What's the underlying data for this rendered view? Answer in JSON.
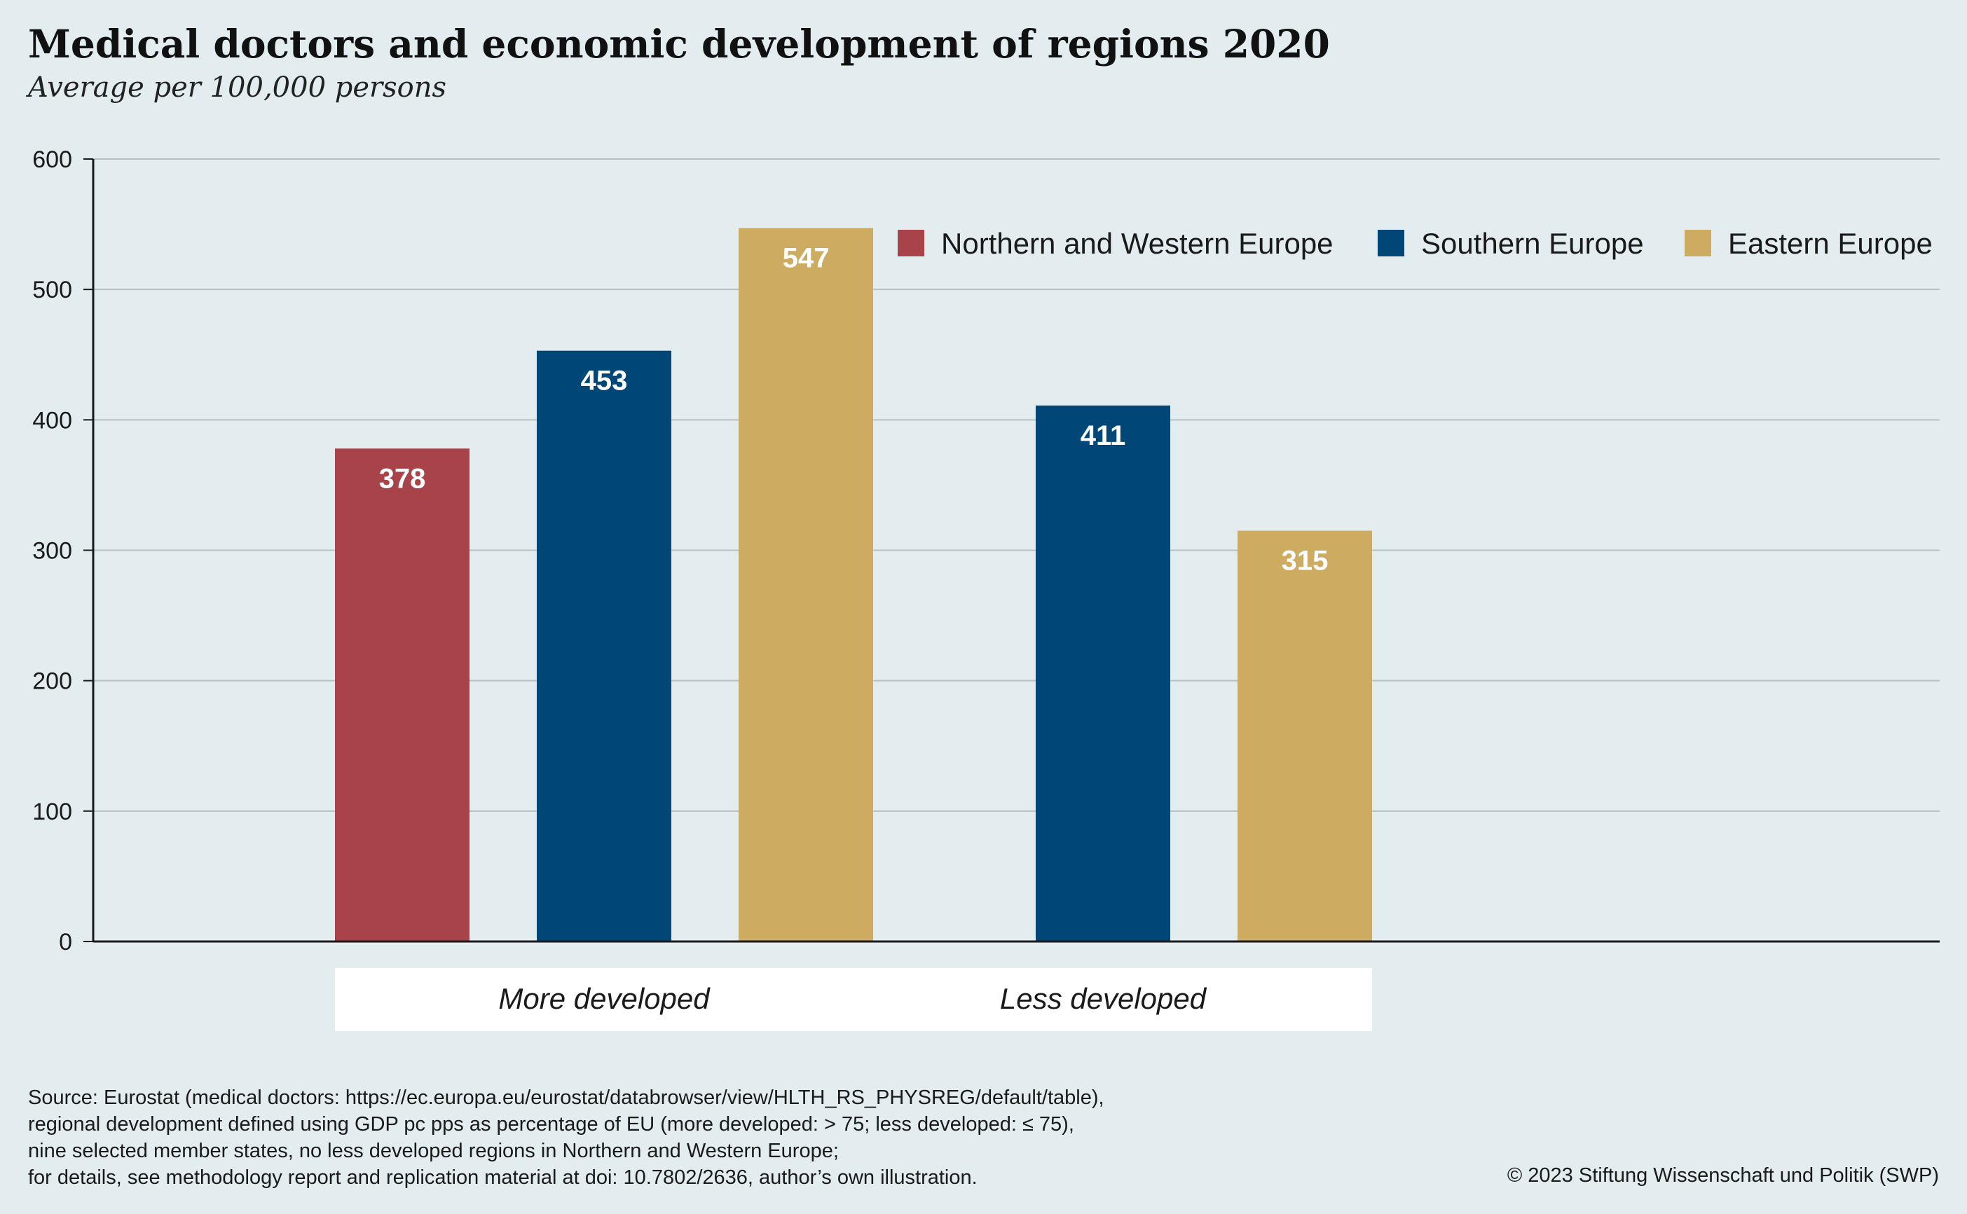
{
  "chart_data": {
    "type": "bar",
    "title": "Medical doctors and economic development of regions 2020",
    "subtitle": "Average per 100,000 persons",
    "categories": [
      "More developed",
      "Less developed"
    ],
    "series": [
      {
        "name": "Northern and Western Europe",
        "color": "#a8434a",
        "values": [
          378,
          null
        ]
      },
      {
        "name": "Southern Europe",
        "color": "#004677",
        "values": [
          453,
          411
        ]
      },
      {
        "name": "Eastern Europe",
        "color": "#cdac62",
        "values": [
          547,
          315
        ]
      }
    ],
    "ylim": [
      0,
      600
    ],
    "yticks": [
      0,
      100,
      200,
      300,
      400,
      500,
      600
    ],
    "grid": true,
    "legend": "top-right",
    "data_labels": true
  },
  "footer": {
    "source_lines": [
      "Source: Eurostat (medical doctors: https://ec.europa.eu/eurostat/databrowser/view/HLTH_RS_PHYSREG/default/table),",
      "regional development defined using GDP pc pps as percentage of EU (more developed: > 75; less developed: ≤ 75),",
      "nine selected member states, no less developed regions in Northern and Western Europe;",
      "for details, see methodology report and replication material at doi: 10.7802/2636, author’s own illustration."
    ],
    "copyright": "© 2023 Stiftung Wissenschaft und Politik (SWP)"
  },
  "colors": {
    "background": "#e3ecef",
    "grid": "#b7c0c4",
    "axis": "#1a1a1a",
    "category_box": "#ffffff"
  }
}
